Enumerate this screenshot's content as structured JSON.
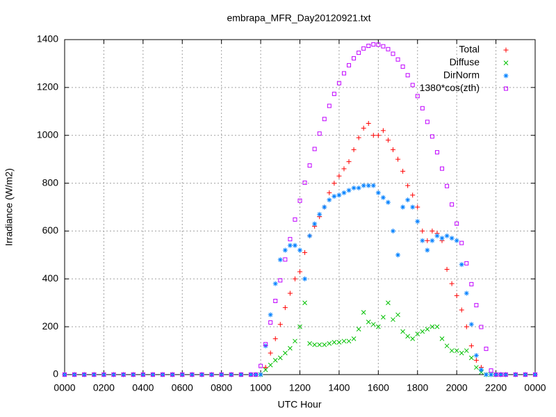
{
  "chart_data": {
    "type": "scatter",
    "title": "embrapa_MFR_Day20120921.txt",
    "x_label": "UTC Hour",
    "y_label": "Irradiance (W/m2)",
    "xlim": [
      0,
      24
    ],
    "ylim": [
      0,
      1400
    ],
    "grid": true,
    "legend": "top-right",
    "xticks": [
      {
        "value": 0,
        "label": "0000"
      },
      {
        "value": 2,
        "label": "0200"
      },
      {
        "value": 4,
        "label": "0400"
      },
      {
        "value": 6,
        "label": "0600"
      },
      {
        "value": 8,
        "label": "0800"
      },
      {
        "value": 10,
        "label": "1000"
      },
      {
        "value": 12,
        "label": "1200"
      },
      {
        "value": 14,
        "label": "1400"
      },
      {
        "value": 16,
        "label": "1600"
      },
      {
        "value": 18,
        "label": "1800"
      },
      {
        "value": 20,
        "label": "2000"
      },
      {
        "value": 22,
        "label": "2200"
      },
      {
        "value": 24,
        "label": "0000"
      }
    ],
    "yticks": [
      0,
      200,
      400,
      600,
      800,
      1000,
      1200,
      1400
    ],
    "x": [
      0,
      0.5,
      1,
      1.5,
      2,
      2.5,
      3,
      3.5,
      4,
      4.5,
      5,
      5.5,
      6,
      6.5,
      7,
      7.5,
      8,
      8.5,
      9,
      9.5,
      9.75,
      10,
      10.25,
      10.5,
      10.75,
      11,
      11.25,
      11.5,
      11.75,
      12,
      12.25,
      12.5,
      12.75,
      13,
      13.25,
      13.5,
      13.75,
      14,
      14.25,
      14.5,
      14.75,
      15,
      15.25,
      15.5,
      15.75,
      16,
      16.25,
      16.5,
      16.75,
      17,
      17.25,
      17.5,
      17.75,
      18,
      18.25,
      18.5,
      18.75,
      19,
      19.25,
      19.5,
      19.75,
      20,
      20.25,
      20.5,
      20.75,
      21,
      21.25,
      21.5,
      21.75,
      22,
      22.25,
      22.5,
      23,
      23.5,
      24
    ],
    "series": [
      {
        "name": "Total",
        "color": "#ff0000",
        "marker": "plus",
        "values": [
          0,
          0,
          0,
          0,
          0,
          0,
          0,
          0,
          0,
          0,
          0,
          0,
          0,
          0,
          0,
          0,
          0,
          0,
          0,
          0,
          0,
          0,
          30,
          90,
          150,
          210,
          280,
          340,
          400,
          430,
          510,
          580,
          620,
          660,
          700,
          760,
          800,
          830,
          860,
          890,
          940,
          990,
          1030,
          1050,
          1000,
          1000,
          1020,
          980,
          940,
          900,
          850,
          790,
          750,
          700,
          600,
          560,
          600,
          590,
          560,
          440,
          380,
          330,
          270,
          200,
          120,
          60,
          30,
          0,
          0,
          0,
          0,
          0,
          0,
          0,
          0
        ]
      },
      {
        "name": "Diffuse",
        "color": "#00c000",
        "marker": "cross",
        "values": [
          0,
          0,
          0,
          0,
          0,
          0,
          0,
          0,
          0,
          0,
          0,
          0,
          0,
          0,
          0,
          0,
          0,
          0,
          0,
          0,
          0,
          0,
          20,
          40,
          60,
          70,
          90,
          110,
          140,
          200,
          300,
          130,
          125,
          125,
          125,
          130,
          135,
          135,
          140,
          140,
          150,
          190,
          260,
          220,
          210,
          200,
          240,
          300,
          230,
          250,
          180,
          160,
          150,
          170,
          180,
          190,
          200,
          200,
          150,
          120,
          100,
          100,
          90,
          100,
          70,
          30,
          10,
          0,
          0,
          0,
          0,
          0,
          0,
          0,
          0
        ]
      },
      {
        "name": "DirNorm",
        "color": "#0080ff",
        "marker": "star",
        "values": [
          0,
          0,
          0,
          0,
          0,
          0,
          0,
          0,
          0,
          0,
          0,
          0,
          0,
          0,
          0,
          0,
          0,
          0,
          0,
          0,
          0,
          0,
          120,
          250,
          380,
          480,
          520,
          540,
          540,
          520,
          400,
          580,
          630,
          670,
          700,
          730,
          745,
          750,
          760,
          770,
          780,
          780,
          790,
          790,
          790,
          760,
          740,
          720,
          600,
          500,
          700,
          730,
          700,
          640,
          560,
          520,
          560,
          580,
          570,
          580,
          570,
          560,
          460,
          340,
          210,
          80,
          20,
          0,
          0,
          0,
          0,
          0,
          0,
          0,
          0
        ]
      },
      {
        "name": "1380*cos(zth)",
        "color": "#c000ff",
        "marker": "square",
        "values": [
          0,
          0,
          0,
          0,
          0,
          0,
          0,
          0,
          0,
          0,
          0,
          0,
          0,
          0,
          0,
          0,
          0,
          0,
          0,
          0,
          0,
          36,
          127,
          218,
          308,
          394,
          481,
          566,
          648,
          727,
          802,
          874,
          943,
          1007,
          1068,
          1123,
          1173,
          1218,
          1259,
          1293,
          1322,
          1345,
          1363,
          1374,
          1380,
          1379,
          1372,
          1360,
          1341,
          1317,
          1287,
          1251,
          1210,
          1164,
          1113,
          1056,
          995,
          929,
          861,
          788,
          711,
          631,
          550,
          465,
          378,
          290,
          199,
          108,
          17,
          0,
          0,
          0,
          0,
          0,
          0
        ]
      }
    ]
  }
}
